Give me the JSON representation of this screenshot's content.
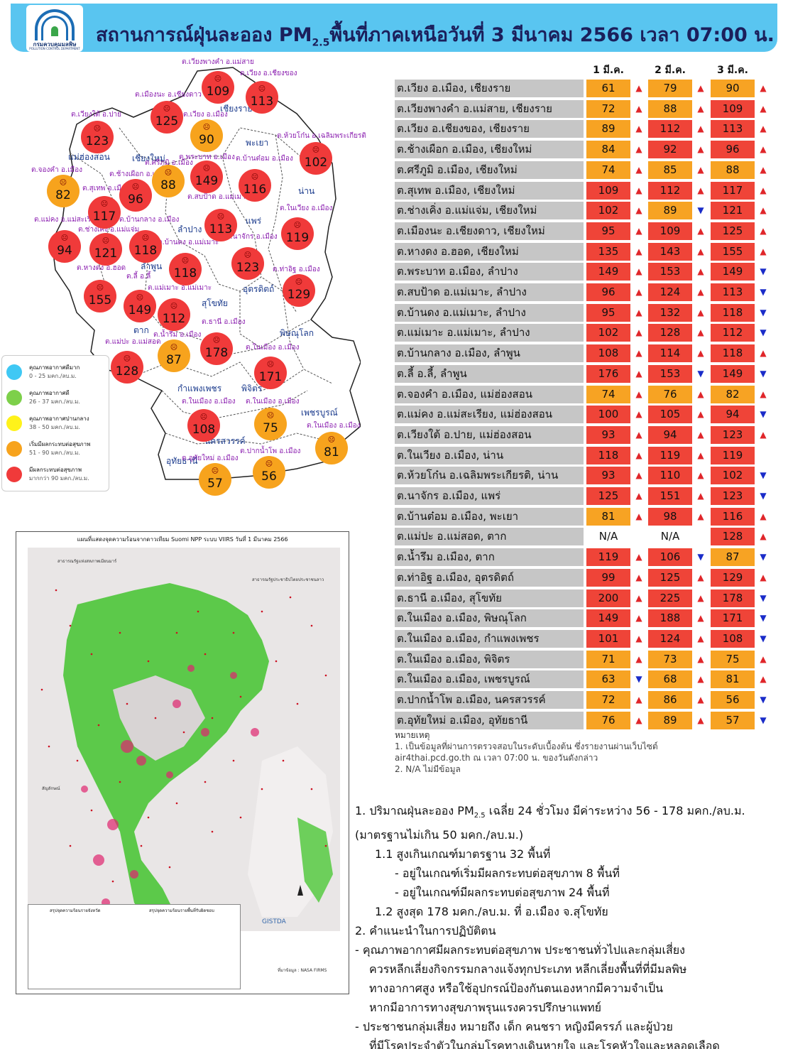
{
  "header": {
    "title_prefix": "สถานการณ์ฝุ่นละออง PM",
    "title_sub": "2.5",
    "title_suffix": "พื้นที่ภาคเหนือวันที่ 3 มีนาคม 2566 เวลา 07:00 น.",
    "logo_name": "กรมควบคุมมลพิษ",
    "logo_sub": "POLLUTION CONTROL DEPARTMENT"
  },
  "map": {
    "circles": [
      {
        "value": "109",
        "color": "red"
      },
      {
        "value": "113",
        "color": "red"
      },
      {
        "value": "125",
        "color": "red"
      },
      {
        "value": "123",
        "color": "red"
      },
      {
        "value": "90",
        "color": "orange"
      },
      {
        "value": "102",
        "color": "red"
      },
      {
        "value": "82",
        "color": "orange"
      },
      {
        "value": "96",
        "color": "red"
      },
      {
        "value": "88",
        "color": "orange"
      },
      {
        "value": "149",
        "color": "red"
      },
      {
        "value": "116",
        "color": "red"
      },
      {
        "value": "117",
        "color": "red"
      },
      {
        "value": "94",
        "color": "red"
      },
      {
        "value": "121",
        "color": "red"
      },
      {
        "value": "118",
        "color": "red"
      },
      {
        "value": "113",
        "color": "red"
      },
      {
        "value": "119",
        "color": "red"
      },
      {
        "value": "123",
        "color": "red"
      },
      {
        "value": "118",
        "color": "red"
      },
      {
        "value": "155",
        "color": "red"
      },
      {
        "value": "149",
        "color": "red"
      },
      {
        "value": "112",
        "color": "red"
      },
      {
        "value": "129",
        "color": "red"
      },
      {
        "value": "178",
        "color": "red"
      },
      {
        "value": "128",
        "color": "red"
      },
      {
        "value": "87",
        "color": "orange"
      },
      {
        "value": "171",
        "color": "red"
      },
      {
        "value": "108",
        "color": "red"
      },
      {
        "value": "75",
        "color": "orange"
      },
      {
        "value": "81",
        "color": "orange"
      },
      {
        "value": "57",
        "color": "orange"
      },
      {
        "value": "56",
        "color": "orange"
      }
    ],
    "place_labels": [
      "ต.เวียงพางคำ อ.แม่สาย",
      "ต.เวียง อ.เชียงของ",
      "ต.เมืองนะ อ.เชียงดาว",
      "ต.เวียงใต้ อ.ปาย",
      "ต.เวียง อ.เมือง",
      "ต.ห้วยโก๋น อ.เฉลิมพระเกียรติ",
      "ต.พระบาท อ.เมือง",
      "ต.บ้านต๋อม อ.เมือง",
      "ต.ศรีภูมิ อ.เมือง",
      "ต.จองคำ อ.เมือง",
      "ต.ช้างเผือก อ.เมือง",
      "ต.สุเทพ อ.เมือง",
      "ต.สบป้าด อ.แม่เมาะ",
      "ต.ในเวียง อ.เมือง",
      "ต.แม่คง อ.แม่สะเรียง",
      "ต.บ้านกลาง อ.เมือง",
      "ต.ช่างเคิ่ง อ.แม่แจ่ม",
      "ต.นาจักร อ.เมือง",
      "ต.บ้านดง อ.แม่เมาะ",
      "ต.หางดง อ.ฮอด",
      "ต.ลี้ อ.ลี้",
      "ต.แม่เมาะ อ.แม่เมาะ",
      "ต.ท่าอิฐ อ.เมือง",
      "ต.ธานี อ.เมือง",
      "ต.น้ำรึม อ.เมือง",
      "ต.แม่ปะ อ.แม่สอด",
      "ต.ในเมือง อ.เมือง",
      "ต.ในเมือง อ.เมือง",
      "ต.ในเมือง อ.เมือง",
      "ต.ในเมือง อ.เมือง",
      "ต.ปากน้ำโพ อ.เมือง",
      "ต.อุทัยใหม่ อ.เมือง"
    ],
    "provinces": [
      "เชียงราย",
      "พะเยา",
      "แม่ฮ่องสอน",
      "เชียงใหม่",
      "น่าน",
      "แพร่",
      "ลำปาง",
      "ลำพูน",
      "อุตรดิตถ์",
      "สุโขทัย",
      "ตาก",
      "พิษณุโลก",
      "กำแพงเพชร",
      "พิจิตร",
      "เพชรบูรณ์",
      "นครสวรรค์",
      "อุทัยธานี"
    ]
  },
  "legend": [
    {
      "title": "คุณภาพอากาศดีมาก",
      "range": "0 - 25 มคก./ลบ.ม.",
      "color": "#3fc8f4"
    },
    {
      "title": "คุณภาพอากาศดี",
      "range": "26 - 37 มคก./ลบ.ม.",
      "color": "#7dd04a"
    },
    {
      "title": "คุณภาพอากาศปานกลาง",
      "range": "38 - 50 มคก./ลบ.ม.",
      "color": "#fff21a"
    },
    {
      "title": "เริ่มมีผลกระทบต่อสุขภาพ",
      "range": "51 - 90 มคก./ลบ.ม.",
      "color": "#f7a31d"
    },
    {
      "title": "มีผลกระทบต่อสุขภาพ",
      "range": "มากกว่า 90 มคก./ลบ.ม.",
      "color": "#f03a3a"
    }
  ],
  "satellite": {
    "title": "แผนที่แสดงจุดความร้อนจากดาวเทียม Suomi NPP ระบบ VIIRS  วันที่ 1 มีนาคม 2566",
    "label_myanmar": "สาธารณรัฐแห่งสหภาพเมียนมาร์",
    "label_laos": "สาธารณรัฐประชาธิปไตยประชาชนลาว",
    "legend_title": "สัญลักษณ์",
    "summary_left": "สรุปจุดความร้อนรายจังหวัด",
    "summary_right": "สรุปจุดความร้อนรายพื้นที่รับผิดชอบ",
    "source": "ที่มาข้อมูล : NASA FIRMS",
    "gistda": "GISTDA"
  },
  "table": {
    "headers": [
      "1 มี.ค.",
      "2 มี.ค.",
      "3 มี.ค."
    ],
    "rows": [
      {
        "place": "ต.เวียง อ.เมือง, เชียงราย",
        "v": [
          "61",
          "79",
          "90"
        ],
        "c": [
          "o",
          "o",
          "o"
        ],
        "a": [
          "up",
          "up",
          "up"
        ]
      },
      {
        "place": "ต.เวียงพางคำ อ.แม่สาย, เชียงราย",
        "v": [
          "72",
          "88",
          "109"
        ],
        "c": [
          "o",
          "o",
          "r"
        ],
        "a": [
          "up",
          "up",
          "up"
        ]
      },
      {
        "place": "ต.เวียง อ.เชียงของ, เชียงราย",
        "v": [
          "89",
          "112",
          "113"
        ],
        "c": [
          "o",
          "r",
          "r"
        ],
        "a": [
          "up",
          "up",
          "up"
        ]
      },
      {
        "place": "ต.ช้างเผือก อ.เมือง, เชียงใหม่",
        "v": [
          "84",
          "92",
          "96"
        ],
        "c": [
          "o",
          "r",
          "r"
        ],
        "a": [
          "up",
          "up",
          "up"
        ]
      },
      {
        "place": "ต.ศรีภูมิ อ.เมือง, เชียงใหม่",
        "v": [
          "74",
          "85",
          "88"
        ],
        "c": [
          "o",
          "o",
          "o"
        ],
        "a": [
          "up",
          "up",
          "up"
        ]
      },
      {
        "place": "ต.สุเทพ อ.เมือง, เชียงใหม่",
        "v": [
          "109",
          "112",
          "117"
        ],
        "c": [
          "r",
          "r",
          "r"
        ],
        "a": [
          "up",
          "up",
          "up"
        ]
      },
      {
        "place": "ต.ช่างเคิ่ง อ.แม่แจ่ม, เชียงใหม่",
        "v": [
          "102",
          "89",
          "121"
        ],
        "c": [
          "r",
          "o",
          "r"
        ],
        "a": [
          "up",
          "down",
          "up"
        ]
      },
      {
        "place": "ต.เมืองนะ อ.เชียงดาว, เชียงใหม่",
        "v": [
          "95",
          "109",
          "125"
        ],
        "c": [
          "r",
          "r",
          "r"
        ],
        "a": [
          "up",
          "up",
          "up"
        ]
      },
      {
        "place": "ต.หางดง อ.ฮอด, เชียงใหม่",
        "v": [
          "135",
          "143",
          "155"
        ],
        "c": [
          "r",
          "r",
          "r"
        ],
        "a": [
          "up",
          "up",
          "up"
        ]
      },
      {
        "place": "ต.พระบาท อ.เมือง, ลำปาง",
        "v": [
          "149",
          "153",
          "149"
        ],
        "c": [
          "r",
          "r",
          "r"
        ],
        "a": [
          "up",
          "up",
          "down"
        ]
      },
      {
        "place": "ต.สบป้าด อ.แม่เมาะ, ลำปาง",
        "v": [
          "96",
          "124",
          "113"
        ],
        "c": [
          "r",
          "r",
          "r"
        ],
        "a": [
          "up",
          "up",
          "down"
        ]
      },
      {
        "place": "ต.บ้านดง อ.แม่เมาะ, ลำปาง",
        "v": [
          "95",
          "132",
          "118"
        ],
        "c": [
          "r",
          "r",
          "r"
        ],
        "a": [
          "up",
          "up",
          "down"
        ]
      },
      {
        "place": "ต.แม่เมาะ อ.แม่เมาะ, ลำปาง",
        "v": [
          "102",
          "128",
          "112"
        ],
        "c": [
          "r",
          "r",
          "r"
        ],
        "a": [
          "up",
          "up",
          "down"
        ]
      },
      {
        "place": "ต.บ้านกลาง อ.เมือง, ลำพูน",
        "v": [
          "108",
          "114",
          "118"
        ],
        "c": [
          "r",
          "r",
          "r"
        ],
        "a": [
          "up",
          "up",
          "up"
        ]
      },
      {
        "place": "ต.ลี้ อ.ลี้, ลำพูน",
        "v": [
          "176",
          "153",
          "149"
        ],
        "c": [
          "r",
          "r",
          "r"
        ],
        "a": [
          "up",
          "down",
          "down"
        ]
      },
      {
        "place": "ต.จองคำ อ.เมือง, แม่ฮ่องสอน",
        "v": [
          "74",
          "76",
          "82"
        ],
        "c": [
          "o",
          "o",
          "o"
        ],
        "a": [
          "up",
          "up",
          "up"
        ]
      },
      {
        "place": "ต.แม่คง อ.แม่สะเรียง, แม่ฮ่องสอน",
        "v": [
          "100",
          "105",
          "94"
        ],
        "c": [
          "r",
          "r",
          "r"
        ],
        "a": [
          "up",
          "up",
          "down"
        ]
      },
      {
        "place": "ต.เวียงใต้ อ.ปาย, แม่ฮ่องสอน",
        "v": [
          "93",
          "94",
          "123"
        ],
        "c": [
          "r",
          "r",
          "r"
        ],
        "a": [
          "up",
          "up",
          "up"
        ]
      },
      {
        "place": "ต.ในเวียง อ.เมือง, น่าน",
        "v": [
          "118",
          "119",
          "119"
        ],
        "c": [
          "r",
          "r",
          "r"
        ],
        "a": [
          "up",
          "up",
          ""
        ]
      },
      {
        "place": "ต.ห้วยโก๋น อ.เฉลิมพระเกียรติ, น่าน",
        "v": [
          "93",
          "110",
          "102"
        ],
        "c": [
          "r",
          "r",
          "r"
        ],
        "a": [
          "up",
          "up",
          "down"
        ]
      },
      {
        "place": "ต.นาจักร อ.เมือง, แพร่",
        "v": [
          "125",
          "151",
          "123"
        ],
        "c": [
          "r",
          "r",
          "r"
        ],
        "a": [
          "up",
          "up",
          "down"
        ]
      },
      {
        "place": "ต.บ้านต๋อม อ.เมือง, พะเยา",
        "v": [
          "81",
          "98",
          "116"
        ],
        "c": [
          "o",
          "r",
          "r"
        ],
        "a": [
          "up",
          "up",
          "up"
        ]
      },
      {
        "place": "ต.แม่ปะ อ.แม่สอด, ตาก",
        "v": [
          "N/A",
          "N/A",
          "128"
        ],
        "c": [
          "n",
          "n",
          "r"
        ],
        "a": [
          "",
          "",
          "up"
        ]
      },
      {
        "place": "ต.น้ำรึม อ.เมือง, ตาก",
        "v": [
          "119",
          "106",
          "87"
        ],
        "c": [
          "r",
          "r",
          "o"
        ],
        "a": [
          "up",
          "down",
          "down"
        ]
      },
      {
        "place": "ต.ท่าอิฐ อ.เมือง, อุตรดิตถ์",
        "v": [
          "99",
          "125",
          "129"
        ],
        "c": [
          "r",
          "r",
          "r"
        ],
        "a": [
          "up",
          "up",
          "up"
        ]
      },
      {
        "place": "ต.ธานี อ.เมือง, สุโขทัย",
        "v": [
          "200",
          "225",
          "178"
        ],
        "c": [
          "r",
          "r",
          "r"
        ],
        "a": [
          "up",
          "up",
          "down"
        ]
      },
      {
        "place": "ต.ในเมือง อ.เมือง, พิษณุโลก",
        "v": [
          "149",
          "188",
          "171"
        ],
        "c": [
          "r",
          "r",
          "r"
        ],
        "a": [
          "up",
          "up",
          "down"
        ]
      },
      {
        "place": "ต.ในเมือง อ.เมือง, กำแพงเพชร",
        "v": [
          "101",
          "124",
          "108"
        ],
        "c": [
          "r",
          "r",
          "r"
        ],
        "a": [
          "up",
          "up",
          "down"
        ]
      },
      {
        "place": "ต.ในเมือง อ.เมือง, พิจิตร",
        "v": [
          "71",
          "73",
          "75"
        ],
        "c": [
          "o",
          "o",
          "o"
        ],
        "a": [
          "up",
          "up",
          "up"
        ]
      },
      {
        "place": "ต.ในเมือง อ.เมือง, เพชรบูรณ์",
        "v": [
          "63",
          "68",
          "81"
        ],
        "c": [
          "o",
          "o",
          "o"
        ],
        "a": [
          "down",
          "up",
          "up"
        ]
      },
      {
        "place": "ต.ปากน้ำโพ อ.เมือง, นครสวรรค์",
        "v": [
          "72",
          "86",
          "56"
        ],
        "c": [
          "o",
          "o",
          "o"
        ],
        "a": [
          "up",
          "up",
          "down"
        ]
      },
      {
        "place": "ต.อุทัยใหม่ อ.เมือง, อุทัยธานี",
        "v": [
          "76",
          "89",
          "57"
        ],
        "c": [
          "o",
          "o",
          "o"
        ],
        "a": [
          "up",
          "up",
          "down"
        ]
      }
    ]
  },
  "notes": {
    "title": "หมายเหตุ",
    "n1a": "1. เป็นข้อมูลที่ผ่านการตรวจสอบในระดับเบื้องต้น  ซึ่งรายงานผ่านเว็บไซต์",
    "n1b": "air4thai.pcd.go.th  ณ  เวลา 07:00  น.  ของวันดังกล่าว",
    "n2": "2.  N/A  ไม่มีข้อมูล"
  },
  "summary": {
    "l1_prefix": "1. ปริมาณฝุ่นละออง PM",
    "l1_sub": "2.5",
    "l1_suffix": "  เฉลี่ย 24  ชั่วโมง  มีค่าระหว่าง  56 - 178 มคก./ลบ.ม.",
    "l2": "(มาตรฐานไม่เกิน 50 มคก./ลบ.ม.)",
    "l3": "1.1 สูงเกินเกณฑ์มาตรฐาน 32  พื้นที่",
    "l4": "- อยู่ในเกณฑ์เริ่มมีผลกระทบต่อสุขภาพ 8 พื้นที่",
    "l5": "- อยู่ในเกณฑ์มีผลกระทบต่อสุขภาพ 24 พื้นที่",
    "l6": "1.2 สูงสุด 178 มคก./ลบ.ม. ที่ อ.เมือง จ.สุโขทัย",
    "l7": "2. คำแนะนำในการปฏิบัติตน",
    "l8": "- คุณภาพอากาศมีผลกระทบต่อสุขภาพ  ประชาชนทั่วไปและกลุ่มเสี่ยง",
    "l9": "ควรหลีกเลี่ยงกิจกรรมกลางแจ้งทุกประเภท  หลีกเลี่ยงพื้นที่ที่มีมลพิษ",
    "l10": "ทางอากาศสูง  หรือใช้อุปกรณ์ป้องกันตนเองหากมีความจำเป็น",
    "l11": "หากมีอาการทางสุขภาพรุนแรงควรปรึกษาแพทย์",
    "l12": "- ประชาชนกลุ่มเสี่ยง  หมายถึง  เด็ก  คนชรา  หญิงมีครรภ์  และผู้ป่วย",
    "l13": "ที่มีโรคประจำตัวในกลุ่มโรคทางเดินหายใจ  และโรคหัวใจและหลอดเลือด"
  },
  "colors": {
    "header_bg": "#59c5f0",
    "red": "#ef4438",
    "orange": "#f7a323",
    "place_bg": "#c6c6c6",
    "up": "#e0262a",
    "down": "#1a2cc9"
  }
}
